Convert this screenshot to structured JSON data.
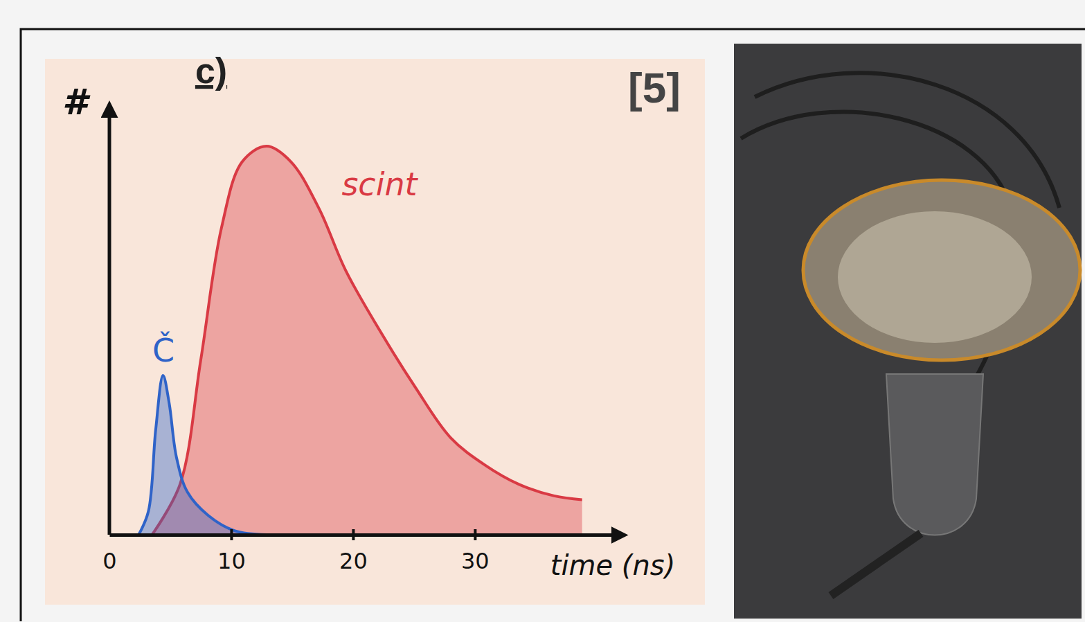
{
  "chart_data": {
    "type": "area",
    "panel_label": "c)",
    "annotations": [
      "[5]"
    ],
    "x_label": "time (ns)",
    "y_label": "#",
    "xlim": [
      0,
      42
    ],
    "xticks": [
      0,
      10,
      20,
      30
    ],
    "ylim": [
      0,
      110
    ],
    "tick_labels": "x",
    "series": [
      {
        "name": "scint",
        "color": "#d93a44",
        "x": [
          3.5,
          5.8,
          7.5,
          9.2,
          10.9,
          12.9,
          14.9,
          17.2,
          19.4,
          22.3,
          25.1,
          28,
          30.8,
          33.6,
          36.5,
          38.8
        ],
        "values": [
          0,
          13,
          45,
          79,
          96,
          100,
          96,
          84,
          68,
          52,
          38,
          25,
          18,
          13,
          10,
          9
        ]
      },
      {
        "name": "Č",
        "color": "#2f63c8",
        "x": [
          2.4,
          3.2,
          3.8,
          4.4,
          4.9,
          5.5,
          6.4,
          8.1,
          10.3,
          12.9
        ],
        "values": [
          0,
          6,
          27,
          41,
          34,
          20,
          11,
          5,
          1,
          0
        ]
      }
    ]
  }
}
